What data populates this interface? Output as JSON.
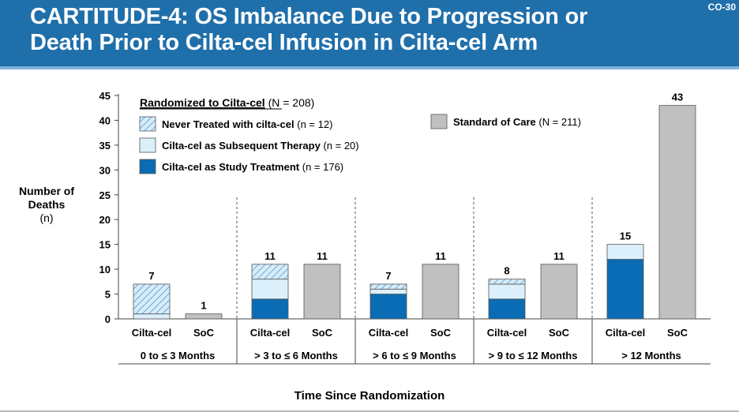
{
  "slide": {
    "title_line1": "CARTITUDE-4: OS Imbalance Due to Progression or",
    "title_line2": "Death Prior to Cilta-cel Infusion in Cilta-cel Arm",
    "slide_id": "CO-30"
  },
  "colors": {
    "banner": "#1f6fab",
    "never_treated": "#d7ecf8",
    "never_treated_hatch": "#6aaad6",
    "subsequent": "#dbf0fb",
    "study_treatment": "#0a6cb4",
    "soc": "#c0c0c0"
  },
  "legend": {
    "header": "Randomized to Cilta-cel",
    "header_n": " (N = 208)",
    "items": [
      {
        "key": "never",
        "label": "Never Treated with cilta-cel",
        "n": " (n = 12)"
      },
      {
        "key": "subsequent",
        "label": "Cilta-cel as Subsequent Therapy",
        "n": " (n = 20)"
      },
      {
        "key": "study",
        "label": "Cilta-cel as Study Treatment",
        "n": " (n = 176)"
      }
    ],
    "soc": {
      "label": "Standard of Care",
      "n": " (N = 211)"
    }
  },
  "chart_data": {
    "type": "bar",
    "title": "",
    "ylabel": "Number of Deaths",
    "ylabel_unit": "(n)",
    "xlabel": "Time Since Randomization",
    "ylim": [
      0,
      45
    ],
    "yticks": [
      0,
      5,
      10,
      15,
      20,
      25,
      30,
      35,
      40,
      45
    ],
    "grid": false,
    "groups": [
      {
        "label": "0 to ≤ 3 Months",
        "cilta": {
          "label": "Cilta-cel",
          "total": 7,
          "study": 0,
          "subsequent": 1,
          "never": 6
        },
        "soc": {
          "label": "SoC",
          "total": 1
        }
      },
      {
        "label": "> 3 to ≤ 6 Months",
        "cilta": {
          "label": "Cilta-cel",
          "total": 11,
          "study": 4,
          "subsequent": 4,
          "never": 3
        },
        "soc": {
          "label": "SoC",
          "total": 11
        }
      },
      {
        "label": "> 6 to ≤ 9 Months",
        "cilta": {
          "label": "Cilta-cel",
          "total": 7,
          "study": 5,
          "subsequent": 1,
          "never": 1
        },
        "soc": {
          "label": "SoC",
          "total": 11
        }
      },
      {
        "label": "> 9 to ≤ 12 Months",
        "cilta": {
          "label": "Cilta-cel",
          "total": 8,
          "study": 4,
          "subsequent": 3,
          "never": 1
        },
        "soc": {
          "label": "SoC",
          "total": 11
        }
      },
      {
        "label": "> 12 Months",
        "cilta": {
          "label": "Cilta-cel",
          "total": 15,
          "study": 12,
          "subsequent": 3,
          "never": 0
        },
        "soc": {
          "label": "SoC",
          "total": 43
        }
      }
    ]
  }
}
